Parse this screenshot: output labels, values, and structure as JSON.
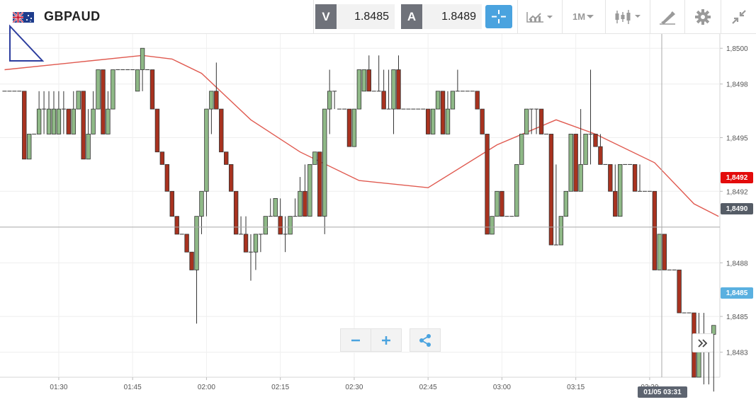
{
  "header": {
    "symbol": "GBPAUD",
    "bid_label": "V",
    "bid_value": "1.8485",
    "ask_label": "A",
    "ask_value": "1.8489",
    "timeframe": "1M",
    "icons": [
      "flag-icon",
      "crosshair-icon",
      "line-chart-icon",
      "candlestick-icon",
      "drawing-tools-icon",
      "gear-icon",
      "fullscreen-icon"
    ]
  },
  "colors": {
    "bull": "#8fb987",
    "bear": "#a8321f",
    "ma_line": "#e05a50",
    "accent": "#4aa3df",
    "ma_tag": "#e30b0b",
    "current_tag": "#5ab0e0",
    "crosshair_tag": "#555c66"
  },
  "chart_data": {
    "type": "candlestick",
    "timeframe": "1M",
    "y_tick_labels": [
      "1,8500",
      "1,8498",
      "1,8495",
      "1,8492",
      "1,8488",
      "1,8485",
      "1,8483"
    ],
    "x_tick_labels": [
      "01:30",
      "01:45",
      "02:00",
      "02:15",
      "02:30",
      "02:45",
      "03:00",
      "03:15",
      "03:30"
    ],
    "ylim": [
      1.84816,
      1.85008
    ],
    "tags": {
      "moving_average": "1,8492",
      "crosshair_price": "1,8490",
      "current_price": "1,8485",
      "crosshair_time": "01/05 03:31"
    },
    "ohlc": [
      [
        1.84976,
        1.84976,
        1.84976,
        1.84976
      ],
      [
        1.84976,
        1.84976,
        1.84976,
        1.84976
      ],
      [
        1.84976,
        1.84976,
        1.84976,
        1.84976
      ],
      [
        1.84976,
        1.84976,
        1.84976,
        1.84976
      ],
      [
        1.84976,
        1.84976,
        1.84938,
        1.84938
      ],
      [
        1.84938,
        1.84952,
        1.84938,
        1.84952
      ],
      [
        1.84952,
        1.84952,
        1.84952,
        1.84952
      ],
      [
        1.84952,
        1.84976,
        1.84952,
        1.84966
      ],
      [
        1.84966,
        1.84976,
        1.84952,
        1.84966
      ],
      [
        1.84952,
        1.84976,
        1.84952,
        1.84966
      ],
      [
        1.84952,
        1.84976,
        1.84952,
        1.84966
      ],
      [
        1.84952,
        1.84976,
        1.84952,
        1.84966
      ],
      [
        1.84966,
        1.84976,
        1.84952,
        1.84966
      ],
      [
        1.84966,
        1.84966,
        1.84952,
        1.84952
      ],
      [
        1.84952,
        1.84976,
        1.84952,
        1.84966
      ],
      [
        1.84966,
        1.84976,
        1.84966,
        1.84976
      ],
      [
        1.84976,
        1.84976,
        1.84938,
        1.84938
      ],
      [
        1.84938,
        1.84966,
        1.84938,
        1.84952
      ],
      [
        1.84952,
        1.84976,
        1.84952,
        1.84966
      ],
      [
        1.84966,
        1.84988,
        1.84966,
        1.84988
      ],
      [
        1.84988,
        1.84988,
        1.84952,
        1.84952
      ],
      [
        1.84952,
        1.84976,
        1.84952,
        1.84966
      ],
      [
        1.84966,
        1.84988,
        1.84966,
        1.84988
      ],
      [
        1.84988,
        1.84988,
        1.84988,
        1.84988
      ],
      [
        1.84988,
        1.84988,
        1.84988,
        1.84988
      ],
      [
        1.84988,
        1.84988,
        1.84988,
        1.84988
      ],
      [
        1.84988,
        1.84988,
        1.84988,
        1.84988
      ],
      [
        1.84976,
        1.84988,
        1.84976,
        1.84988
      ],
      [
        1.84988,
        1.85,
        1.84976,
        1.85
      ],
      [
        1.84988,
        1.84988,
        1.84988,
        1.84988
      ],
      [
        1.84988,
        1.84988,
        1.84966,
        1.84966
      ],
      [
        1.84966,
        1.84966,
        1.84942,
        1.84942
      ],
      [
        1.84942,
        1.84942,
        1.84935,
        1.84935
      ],
      [
        1.84935,
        1.84935,
        1.8492,
        1.8492
      ],
      [
        1.8492,
        1.8492,
        1.84906,
        1.84906
      ],
      [
        1.84906,
        1.84906,
        1.84896,
        1.84896
      ],
      [
        1.84896,
        1.84896,
        1.84896,
        1.84896
      ],
      [
        1.84896,
        1.84896,
        1.84886,
        1.84886
      ],
      [
        1.84886,
        1.84886,
        1.84876,
        1.84876
      ],
      [
        1.84876,
        1.84906,
        1.84846,
        1.84906
      ],
      [
        1.84906,
        1.8492,
        1.84896,
        1.8492
      ],
      [
        1.8492,
        1.84966,
        1.84906,
        1.84966
      ],
      [
        1.84966,
        1.84976,
        1.84952,
        1.84976
      ],
      [
        1.84976,
        1.84992,
        1.84966,
        1.84966
      ],
      [
        1.84966,
        1.84966,
        1.84942,
        1.84942
      ],
      [
        1.84942,
        1.84942,
        1.84935,
        1.84935
      ],
      [
        1.84935,
        1.84935,
        1.8492,
        1.8492
      ],
      [
        1.8492,
        1.8492,
        1.84896,
        1.84896
      ],
      [
        1.84896,
        1.84906,
        1.84896,
        1.84896
      ],
      [
        1.84896,
        1.84906,
        1.84886,
        1.84886
      ],
      [
        1.84886,
        1.84896,
        1.8487,
        1.84886
      ],
      [
        1.84886,
        1.84896,
        1.84876,
        1.84896
      ],
      [
        1.84896,
        1.84896,
        1.84886,
        1.84896
      ],
      [
        1.84896,
        1.84906,
        1.84896,
        1.84906
      ],
      [
        1.84906,
        1.84916,
        1.84906,
        1.84906
      ],
      [
        1.84906,
        1.84916,
        1.84906,
        1.84916
      ],
      [
        1.84906,
        1.84916,
        1.84896,
        1.84896
      ],
      [
        1.84896,
        1.84906,
        1.84886,
        1.84896
      ],
      [
        1.84896,
        1.84906,
        1.84896,
        1.84906
      ],
      [
        1.84906,
        1.84916,
        1.84906,
        1.84906
      ],
      [
        1.84906,
        1.84928,
        1.84906,
        1.8492
      ],
      [
        1.8492,
        1.84935,
        1.84906,
        1.84906
      ],
      [
        1.84906,
        1.84935,
        1.84906,
        1.84935
      ],
      [
        1.84935,
        1.84942,
        1.84935,
        1.84942
      ],
      [
        1.84942,
        1.84942,
        1.84906,
        1.84906
      ],
      [
        1.84906,
        1.84966,
        1.84896,
        1.84966
      ],
      [
        1.84966,
        1.84988,
        1.84952,
        1.84976
      ],
      [
        1.84976,
        1.84976,
        1.84966,
        1.84976
      ],
      [
        1.84966,
        1.84966,
        1.84966,
        1.84966
      ],
      [
        1.84966,
        1.84966,
        1.84966,
        1.84966
      ],
      [
        1.84966,
        1.84966,
        1.84945,
        1.84945
      ],
      [
        1.84945,
        1.84966,
        1.84945,
        1.84966
      ],
      [
        1.84966,
        1.84988,
        1.84966,
        1.84988
      ],
      [
        1.84976,
        1.84988,
        1.84976,
        1.84988
      ],
      [
        1.84988,
        1.84996,
        1.84976,
        1.84976
      ],
      [
        1.84976,
        1.84976,
        1.84976,
        1.84976
      ],
      [
        1.84976,
        1.84996,
        1.84976,
        1.84976
      ],
      [
        1.84976,
        1.84988,
        1.84966,
        1.84966
      ],
      [
        1.84966,
        1.84988,
        1.84966,
        1.84966
      ],
      [
        1.84966,
        1.84988,
        1.84952,
        1.84988
      ],
      [
        1.84988,
        1.84996,
        1.84966,
        1.84966
      ],
      [
        1.84966,
        1.84966,
        1.84966,
        1.84966
      ],
      [
        1.84966,
        1.84966,
        1.84966,
        1.84966
      ],
      [
        1.84966,
        1.84966,
        1.84966,
        1.84966
      ],
      [
        1.84966,
        1.84966,
        1.84966,
        1.84966
      ],
      [
        1.84966,
        1.84966,
        1.84966,
        1.84966
      ],
      [
        1.84966,
        1.84966,
        1.84952,
        1.84952
      ],
      [
        1.84952,
        1.84966,
        1.84952,
        1.84966
      ],
      [
        1.84966,
        1.84976,
        1.84966,
        1.84976
      ],
      [
        1.84976,
        1.84976,
        1.84952,
        1.84952
      ],
      [
        1.84952,
        1.84976,
        1.84952,
        1.84966
      ],
      [
        1.84966,
        1.84976,
        1.84966,
        1.84976
      ],
      [
        1.84976,
        1.84988,
        1.84976,
        1.84976
      ],
      [
        1.84976,
        1.84976,
        1.84976,
        1.84976
      ],
      [
        1.84976,
        1.84976,
        1.84976,
        1.84976
      ],
      [
        1.84976,
        1.84976,
        1.84976,
        1.84976
      ],
      [
        1.84976,
        1.84976,
        1.84966,
        1.84966
      ],
      [
        1.84966,
        1.84966,
        1.84952,
        1.84952
      ],
      [
        1.84952,
        1.84952,
        1.84896,
        1.84896
      ],
      [
        1.84896,
        1.84906,
        1.84896,
        1.84906
      ],
      [
        1.84906,
        1.8492,
        1.84906,
        1.8492
      ],
      [
        1.8492,
        1.8492,
        1.84906,
        1.84906
      ],
      [
        1.84906,
        1.84906,
        1.84906,
        1.84906
      ],
      [
        1.84906,
        1.84906,
        1.84906,
        1.84906
      ],
      [
        1.84906,
        1.84935,
        1.84906,
        1.84935
      ],
      [
        1.84935,
        1.84952,
        1.84935,
        1.84952
      ],
      [
        1.84952,
        1.84966,
        1.84952,
        1.84966
      ],
      [
        1.84966,
        1.84966,
        1.84952,
        1.84966
      ],
      [
        1.84966,
        1.84966,
        1.84952,
        1.84966
      ],
      [
        1.84966,
        1.84966,
        1.84952,
        1.84952
      ],
      [
        1.84952,
        1.84952,
        1.84952,
        1.84952
      ],
      [
        1.84952,
        1.84952,
        1.8489,
        1.8489
      ],
      [
        1.8489,
        1.84935,
        1.8489,
        1.8489
      ],
      [
        1.8489,
        1.84906,
        1.8489,
        1.84906
      ],
      [
        1.84906,
        1.8492,
        1.84906,
        1.8492
      ],
      [
        1.8492,
        1.84952,
        1.8492,
        1.84952
      ],
      [
        1.84952,
        1.84952,
        1.8492,
        1.8492
      ],
      [
        1.8492,
        1.84966,
        1.8492,
        1.84935
      ],
      [
        1.84935,
        1.84952,
        1.84935,
        1.84952
      ],
      [
        1.84952,
        1.84988,
        1.84935,
        1.84952
      ],
      [
        1.84952,
        1.84952,
        1.84945,
        1.84945
      ],
      [
        1.84945,
        1.84952,
        1.84935,
        1.84935
      ],
      [
        1.84935,
        1.84935,
        1.84935,
        1.84935
      ],
      [
        1.84935,
        1.84935,
        1.8492,
        1.8492
      ],
      [
        1.8492,
        1.84935,
        1.84906,
        1.84906
      ],
      [
        1.84906,
        1.84935,
        1.84906,
        1.84935
      ],
      [
        1.84935,
        1.84935,
        1.84935,
        1.84935
      ],
      [
        1.84935,
        1.84935,
        1.84935,
        1.84935
      ],
      [
        1.84935,
        1.84935,
        1.8492,
        1.8492
      ],
      [
        1.8492,
        1.84935,
        1.8492,
        1.8492
      ],
      [
        1.8492,
        1.8492,
        1.8492,
        1.8492
      ],
      [
        1.8492,
        1.8492,
        1.8492,
        1.8492
      ],
      [
        1.8492,
        1.8492,
        1.84876,
        1.84876
      ],
      [
        1.84876,
        1.84896,
        1.84876,
        1.84896
      ],
      [
        1.84896,
        1.84896,
        1.84876,
        1.84876
      ],
      [
        1.84876,
        1.84876,
        1.84876,
        1.84876
      ],
      [
        1.84876,
        1.84876,
        1.84876,
        1.84876
      ],
      [
        1.84876,
        1.84876,
        1.84852,
        1.84852
      ],
      [
        1.84852,
        1.84852,
        1.84852,
        1.84852
      ],
      [
        1.84852,
        1.84852,
        1.84852,
        1.84852
      ],
      [
        1.84852,
        1.84852,
        1.84816,
        1.84816
      ],
      [
        1.84816,
        1.84852,
        1.84816,
        1.84834
      ],
      [
        1.84834,
        1.84852,
        1.84812,
        1.8483
      ],
      [
        1.8483,
        1.8484,
        1.84812,
        1.8484
      ],
      [
        1.8484,
        1.84845,
        1.84808,
        1.84845
      ]
    ],
    "ma_line": [
      [
        0,
        1.84988
      ],
      [
        14,
        1.84992
      ],
      [
        28,
        1.84996
      ],
      [
        34,
        1.84994
      ],
      [
        40,
        1.84986
      ],
      [
        50,
        1.8496
      ],
      [
        60,
        1.84942
      ],
      [
        72,
        1.84926
      ],
      [
        86,
        1.84922
      ],
      [
        100,
        1.84946
      ],
      [
        112,
        1.8496
      ],
      [
        120,
        1.84952
      ],
      [
        132,
        1.84936
      ],
      [
        140,
        1.84913
      ],
      [
        145,
        1.84906
      ]
    ]
  }
}
